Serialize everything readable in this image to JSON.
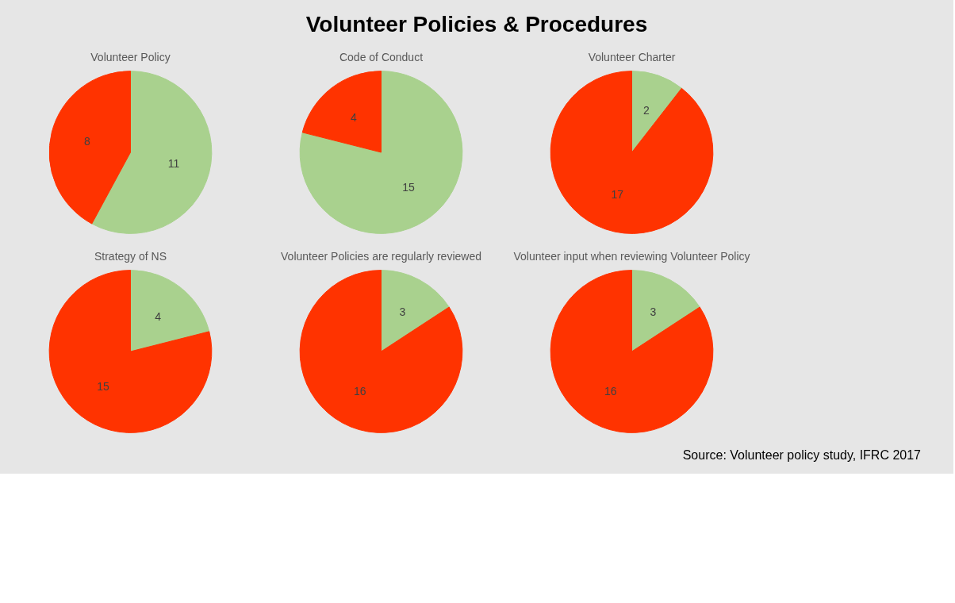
{
  "chart_data": [
    {
      "type": "other",
      "title": "Volunteer Policies & Procedures",
      "annotations": [
        "Source: Volunteer policy study, IFRC 2017"
      ]
    },
    {
      "type": "pie",
      "title": "Volunteer Policy",
      "categories": [
        null,
        null
      ],
      "values": [
        11,
        8
      ],
      "colors": [
        "#a9d18e",
        "#ff3300"
      ],
      "data_labels": true
    },
    {
      "type": "pie",
      "title": "Code of Conduct",
      "categories": [
        null,
        null
      ],
      "values": [
        15,
        4
      ],
      "colors": [
        "#a9d18e",
        "#ff3300"
      ],
      "data_labels": true
    },
    {
      "type": "pie",
      "title": "Volunteer Charter",
      "categories": [
        null,
        null
      ],
      "values": [
        2,
        17
      ],
      "colors": [
        "#a9d18e",
        "#ff3300"
      ],
      "data_labels": true
    },
    {
      "type": "pie",
      "title": "Strategy of NS",
      "categories": [
        null,
        null
      ],
      "values": [
        4,
        15
      ],
      "colors": [
        "#a9d18e",
        "#ff3300"
      ],
      "data_labels": true
    },
    {
      "type": "pie",
      "title": "Volunteer Policies are regularly reviewed",
      "categories": [
        null,
        null
      ],
      "values": [
        3,
        16
      ],
      "colors": [
        "#a9d18e",
        "#ff3300"
      ],
      "data_labels": true
    },
    {
      "type": "pie",
      "title": "Volunteer input when reviewing Volunteer Policy",
      "categories": [
        null,
        null
      ],
      "values": [
        3,
        16
      ],
      "colors": [
        "#a9d18e",
        "#ff3300"
      ],
      "data_labels": true
    }
  ]
}
